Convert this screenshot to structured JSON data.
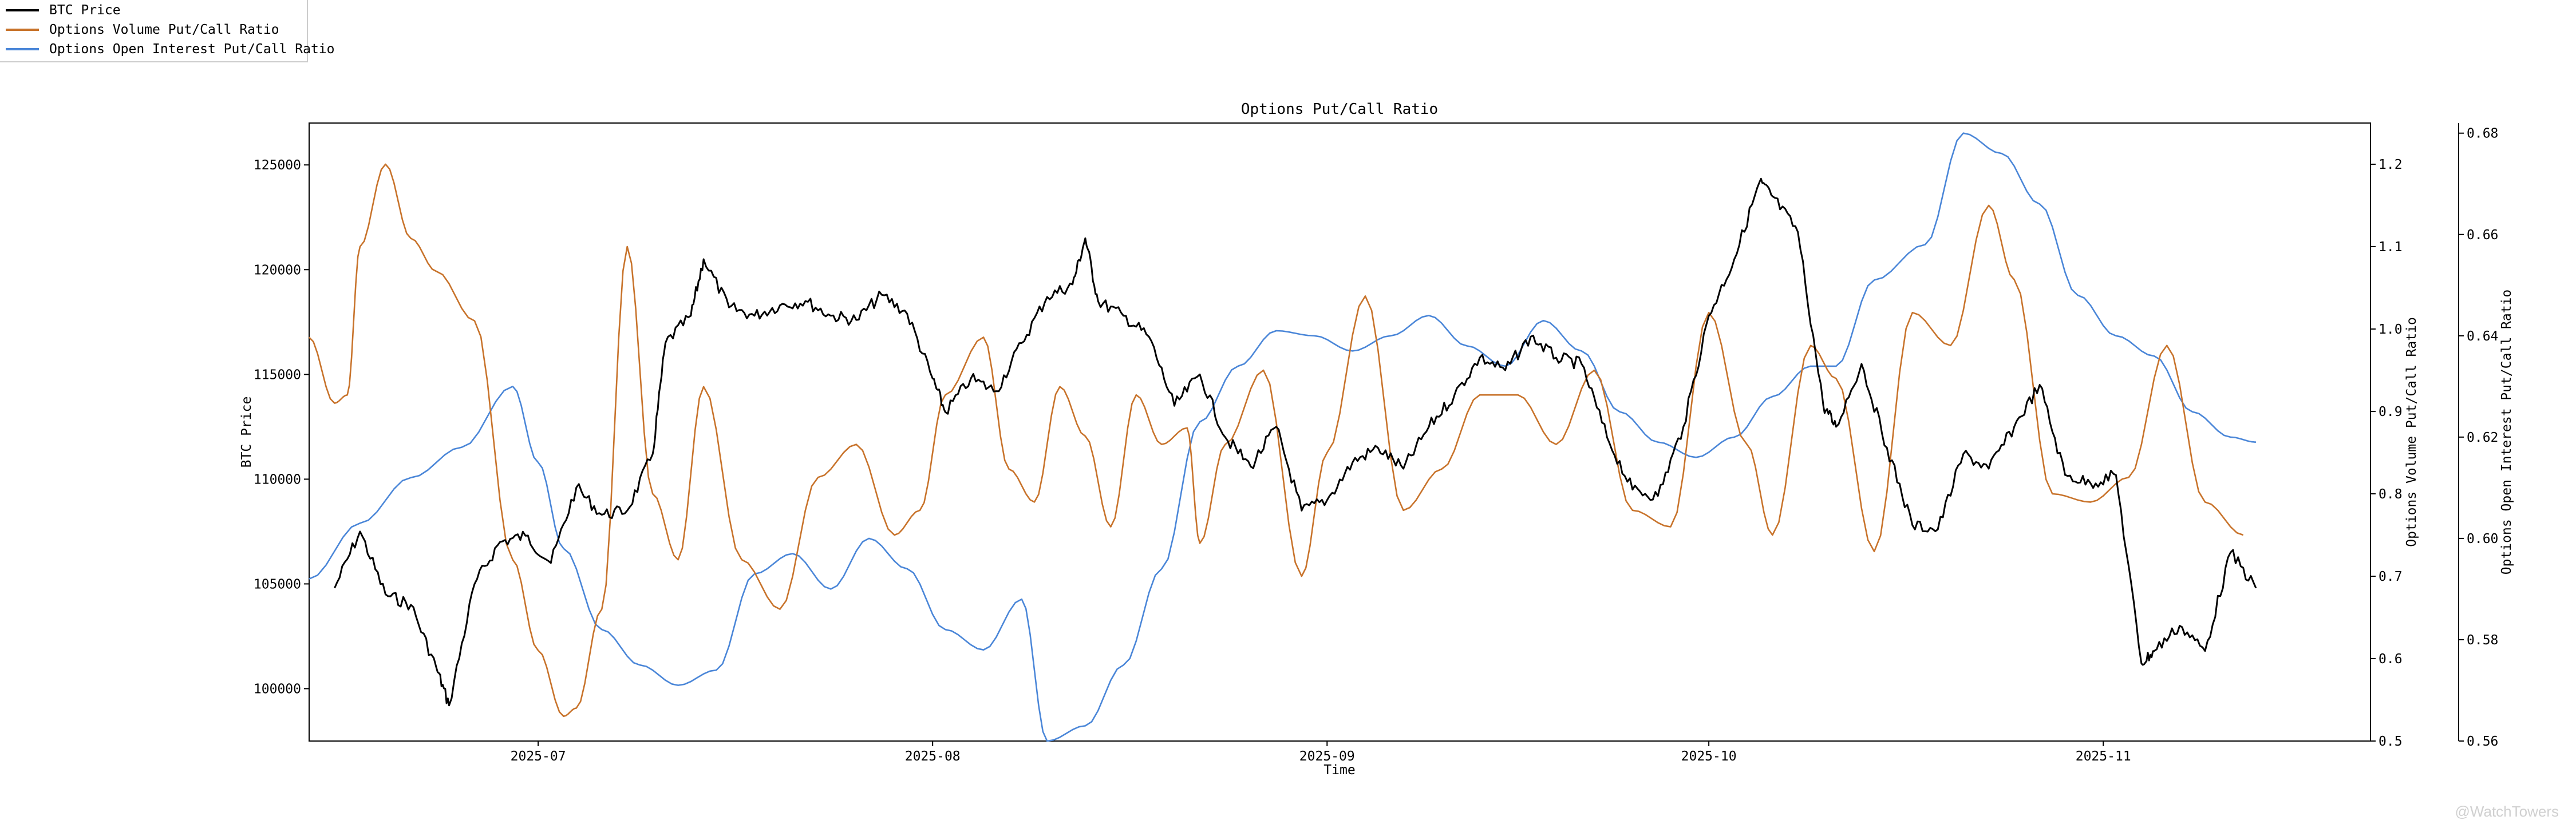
{
  "legend": {
    "items": [
      {
        "label": "BTC Price",
        "color": "#000000"
      },
      {
        "label": "Options Volume Put/Call Ratio",
        "color": "#c8732b"
      },
      {
        "label": "Options Open Interest Put/Call Ratio",
        "color": "#4a86d8"
      }
    ]
  },
  "watermark": "@WatchTowers",
  "chart_data": {
    "type": "line",
    "title": "Options Put/Call Ratio",
    "xlabel": "Time",
    "ylabel_left": "BTC Price",
    "ylabel_right1": "Options Volume Put/Call Ratio",
    "ylabel_right2": "Options Open Interest Put/Call Ratio",
    "xlim": [
      "2025-06-13",
      "2025-11-22"
    ],
    "x_ticks": [
      "2025-07",
      "2025-08",
      "2025-09",
      "2025-10",
      "2025-11"
    ],
    "x_tick_dates": [
      "2025-07-01",
      "2025-08-01",
      "2025-09-01",
      "2025-10-01",
      "2025-11-01"
    ],
    "ylim_left": [
      97500,
      127000
    ],
    "yticks_left": [
      100000,
      105000,
      110000,
      115000,
      120000,
      125000
    ],
    "ylim_right1": [
      0.5,
      1.25
    ],
    "yticks_right1": [
      0.5,
      0.6,
      0.7,
      0.8,
      0.9,
      1.0,
      1.1,
      1.2
    ],
    "ylim_right2": [
      0.56,
      0.682
    ],
    "yticks_right2": [
      0.56,
      0.58,
      0.6,
      0.62,
      0.64,
      0.66,
      0.68
    ],
    "grid": false,
    "legend_position": "top-left outside",
    "series": [
      {
        "name": "BTC Price",
        "axis": "left",
        "color": "#000000",
        "x": [
          "2025-06-15",
          "2025-06-17",
          "2025-06-19",
          "2025-06-21",
          "2025-06-23",
          "2025-06-24",
          "2025-06-26",
          "2025-06-28",
          "2025-06-30",
          "2025-07-02",
          "2025-07-04",
          "2025-07-06",
          "2025-07-08",
          "2025-07-10",
          "2025-07-11",
          "2025-07-13",
          "2025-07-14",
          "2025-07-16",
          "2025-07-18",
          "2025-07-20",
          "2025-07-22",
          "2025-07-24",
          "2025-07-26",
          "2025-07-28",
          "2025-07-30",
          "2025-08-01",
          "2025-08-02",
          "2025-08-04",
          "2025-08-06",
          "2025-08-08",
          "2025-08-10",
          "2025-08-12",
          "2025-08-13",
          "2025-08-14",
          "2025-08-16",
          "2025-08-18",
          "2025-08-20",
          "2025-08-22",
          "2025-08-24",
          "2025-08-26",
          "2025-08-28",
          "2025-08-30",
          "2025-09-01",
          "2025-09-03",
          "2025-09-05",
          "2025-09-07",
          "2025-09-09",
          "2025-09-11",
          "2025-09-13",
          "2025-09-15",
          "2025-09-17",
          "2025-09-19",
          "2025-09-21",
          "2025-09-23",
          "2025-09-25",
          "2025-09-27",
          "2025-09-29",
          "2025-10-01",
          "2025-10-03",
          "2025-10-05",
          "2025-10-06",
          "2025-10-08",
          "2025-10-10",
          "2025-10-11",
          "2025-10-13",
          "2025-10-15",
          "2025-10-17",
          "2025-10-19",
          "2025-10-21",
          "2025-10-23",
          "2025-10-25",
          "2025-10-27",
          "2025-10-29",
          "2025-10-31",
          "2025-11-02",
          "2025-11-04",
          "2025-11-05",
          "2025-11-07",
          "2025-11-09",
          "2025-11-11",
          "2025-11-13"
        ],
        "y": [
          104800,
          107500,
          104500,
          104000,
          101000,
          99200,
          105000,
          107000,
          107300,
          106000,
          109600,
          108300,
          108500,
          111200,
          116500,
          117800,
          120500,
          118200,
          117800,
          118300,
          118500,
          117800,
          117600,
          118800,
          117900,
          114800,
          113200,
          114800,
          114200,
          116500,
          118700,
          119300,
          121500,
          118500,
          117800,
          116800,
          113500,
          115000,
          112000,
          110600,
          112500,
          108500,
          109000,
          110800,
          111500,
          110500,
          112500,
          114000,
          115800,
          115200,
          116800,
          115800,
          115500,
          112000,
          109500,
          109200,
          112500,
          117800,
          120500,
          124200,
          123500,
          121800,
          113500,
          112500,
          115500,
          111500,
          107800,
          107600,
          111200,
          110500,
          112500,
          114500,
          110200,
          109800,
          110200,
          101200,
          101800,
          103000,
          101800,
          106500,
          104800
        ]
      },
      {
        "name": "Options Volume Put/Call Ratio",
        "axis": "right1",
        "color": "#c8732b",
        "x": [
          "2025-06-13",
          "2025-06-15",
          "2025-06-16",
          "2025-06-17",
          "2025-06-19",
          "2025-06-21",
          "2025-06-23",
          "2025-06-26",
          "2025-06-29",
          "2025-07-01",
          "2025-07-03",
          "2025-07-04",
          "2025-07-06",
          "2025-07-08",
          "2025-07-10",
          "2025-07-12",
          "2025-07-14",
          "2025-07-17",
          "2025-07-20",
          "2025-07-23",
          "2025-07-26",
          "2025-07-29",
          "2025-07-31",
          "2025-08-02",
          "2025-08-05",
          "2025-08-07",
          "2025-08-09",
          "2025-08-11",
          "2025-08-13",
          "2025-08-15",
          "2025-08-17",
          "2025-08-19",
          "2025-08-21",
          "2025-08-22",
          "2025-08-24",
          "2025-08-27",
          "2025-08-30",
          "2025-09-01",
          "2025-09-04",
          "2025-09-07",
          "2025-09-10",
          "2025-09-13",
          "2025-09-16",
          "2025-09-19",
          "2025-09-22",
          "2025-09-25",
          "2025-09-28",
          "2025-10-01",
          "2025-10-04",
          "2025-10-06",
          "2025-10-09",
          "2025-10-11",
          "2025-10-14",
          "2025-10-17",
          "2025-10-20",
          "2025-10-23",
          "2025-10-25",
          "2025-10-28",
          "2025-10-31",
          "2025-11-03",
          "2025-11-06",
          "2025-11-09",
          "2025-11-12"
        ],
        "y": [
          0.99,
          0.91,
          0.92,
          1.1,
          1.2,
          1.11,
          1.07,
          1.01,
          0.72,
          0.61,
          0.53,
          0.54,
          0.66,
          1.1,
          0.8,
          0.72,
          0.93,
          0.72,
          0.66,
          0.82,
          0.86,
          0.75,
          0.78,
          0.92,
          0.99,
          0.83,
          0.79,
          0.93,
          0.87,
          0.76,
          0.92,
          0.86,
          0.88,
          0.74,
          0.86,
          0.95,
          0.7,
          0.85,
          1.04,
          0.78,
          0.83,
          0.92,
          0.92,
          0.86,
          0.95,
          0.78,
          0.76,
          1.02,
          0.86,
          0.75,
          0.98,
          0.94,
          0.73,
          1.02,
          0.98,
          1.15,
          1.06,
          0.8,
          0.79,
          0.82,
          0.98,
          0.79,
          0.75
        ]
      },
      {
        "name": "Options Open Interest Put/Call Ratio",
        "axis": "right2",
        "color": "#4a86d8",
        "x": [
          "2025-06-13",
          "2025-06-17",
          "2025-06-21",
          "2025-06-25",
          "2025-06-29",
          "2025-07-01",
          "2025-07-03",
          "2025-07-06",
          "2025-07-09",
          "2025-07-12",
          "2025-07-15",
          "2025-07-18",
          "2025-07-21",
          "2025-07-24",
          "2025-07-27",
          "2025-07-30",
          "2025-08-02",
          "2025-08-05",
          "2025-08-08",
          "2025-08-10",
          "2025-08-13",
          "2025-08-16",
          "2025-08-19",
          "2025-08-22",
          "2025-08-25",
          "2025-08-28",
          "2025-08-31",
          "2025-09-03",
          "2025-09-06",
          "2025-09-09",
          "2025-09-12",
          "2025-09-15",
          "2025-09-18",
          "2025-09-21",
          "2025-09-24",
          "2025-09-27",
          "2025-09-30",
          "2025-10-03",
          "2025-10-06",
          "2025-10-09",
          "2025-10-11",
          "2025-10-14",
          "2025-10-18",
          "2025-10-21",
          "2025-10-24",
          "2025-10-27",
          "2025-10-30",
          "2025-11-02",
          "2025-11-05",
          "2025-11-08",
          "2025-11-11",
          "2025-11-13"
        ],
        "y": [
          0.592,
          0.603,
          0.612,
          0.618,
          0.63,
          0.615,
          0.598,
          0.582,
          0.575,
          0.571,
          0.574,
          0.593,
          0.597,
          0.59,
          0.6,
          0.594,
          0.582,
          0.578,
          0.588,
          0.56,
          0.563,
          0.575,
          0.594,
          0.623,
          0.634,
          0.641,
          0.64,
          0.637,
          0.64,
          0.644,
          0.638,
          0.634,
          0.643,
          0.637,
          0.625,
          0.619,
          0.616,
          0.62,
          0.628,
          0.634,
          0.634,
          0.651,
          0.658,
          0.68,
          0.676,
          0.666,
          0.648,
          0.64,
          0.636,
          0.625,
          0.62,
          0.619
        ]
      }
    ]
  }
}
